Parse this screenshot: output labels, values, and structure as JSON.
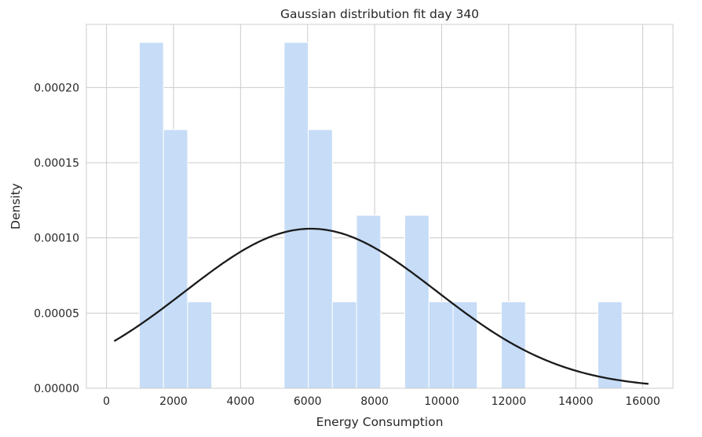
{
  "chart_data": {
    "type": "bar",
    "title": "Gaussian distribution fit day 340",
    "xlabel": "Energy Consumption",
    "ylabel": "Density",
    "xlim": [
      -600,
      16900
    ],
    "ylim": [
      0,
      0.000242
    ],
    "grid": true,
    "xticks": [
      0,
      2000,
      4000,
      6000,
      8000,
      10000,
      12000,
      14000,
      16000
    ],
    "xtick_labels": [
      "0",
      "2000",
      "4000",
      "6000",
      "8000",
      "10000",
      "12000",
      "14000",
      "16000"
    ],
    "yticks": [
      0,
      5e-05,
      0.0001,
      0.00015,
      0.0002
    ],
    "ytick_labels": [
      "0.00000",
      "0.00005",
      "0.00010",
      "0.00015",
      "0.00020"
    ],
    "histogram": {
      "color": "#c6dcf7",
      "bins": [
        {
          "start": 980,
          "end": 1700,
          "density": 0.00023
        },
        {
          "start": 1700,
          "end": 2420,
          "density": 0.000172
        },
        {
          "start": 2420,
          "end": 3140,
          "density": 5.75e-05
        },
        {
          "start": 5300,
          "end": 6020,
          "density": 0.00023
        },
        {
          "start": 6020,
          "end": 6740,
          "density": 0.000172
        },
        {
          "start": 6740,
          "end": 7460,
          "density": 5.75e-05
        },
        {
          "start": 7460,
          "end": 8180,
          "density": 0.000115
        },
        {
          "start": 8900,
          "end": 9620,
          "density": 0.000115
        },
        {
          "start": 9620,
          "end": 10340,
          "density": 5.75e-05
        },
        {
          "start": 10340,
          "end": 11060,
          "density": 5.75e-05
        },
        {
          "start": 11780,
          "end": 12500,
          "density": 5.75e-05
        },
        {
          "start": 14660,
          "end": 15380,
          "density": 5.75e-05
        }
      ]
    },
    "fit": {
      "mean": 6100,
      "std": 3760,
      "x_range": [
        230,
        16170
      ],
      "color": "#1a1a1a"
    }
  }
}
